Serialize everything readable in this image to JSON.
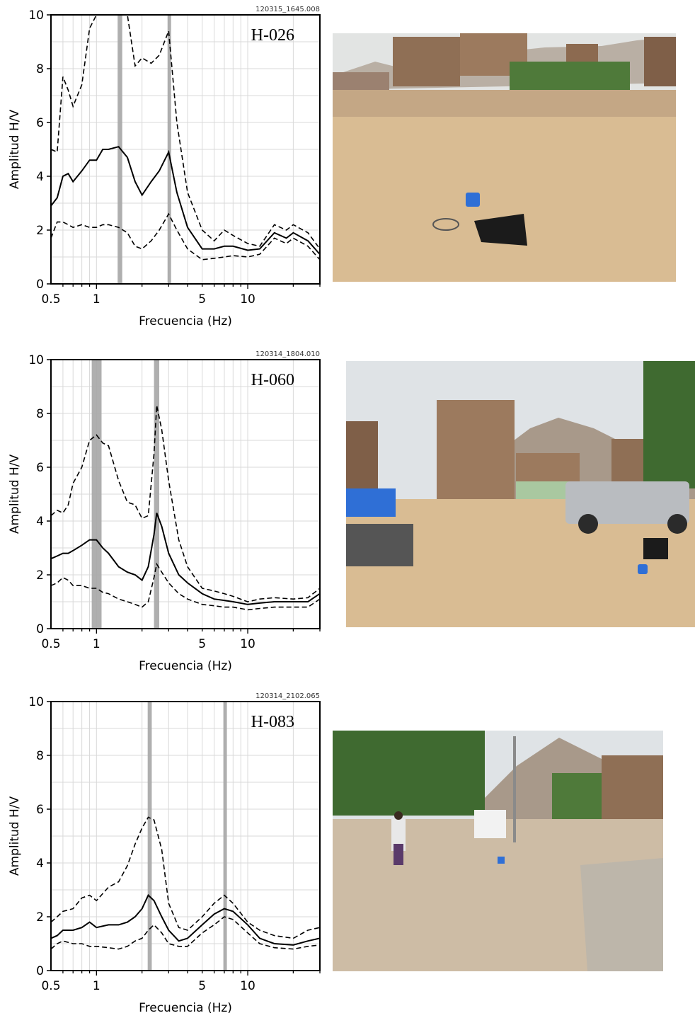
{
  "chart_data": [
    {
      "type": "line",
      "station": "H-026",
      "record_id": "120315_1645.008",
      "xlabel": "Frecuencia (Hz)",
      "ylabel": "Amplitud H/V",
      "xscale": "log",
      "xlim": [
        0.5,
        30
      ],
      "ylim": [
        0,
        10
      ],
      "xticks": [
        "0.5",
        "1",
        "5",
        "10"
      ],
      "yticks": [
        "0",
        "2",
        "4",
        "6",
        "8",
        "10"
      ],
      "peak_bands": [
        [
          1.38,
          1.48
        ],
        [
          2.95,
          3.05
        ]
      ],
      "x": [
        0.5,
        0.55,
        0.6,
        0.65,
        0.7,
        0.8,
        0.9,
        1.0,
        1.1,
        1.2,
        1.4,
        1.6,
        1.8,
        2.0,
        2.3,
        2.6,
        3.0,
        3.4,
        4.0,
        5.0,
        6.0,
        7.0,
        8.0,
        10,
        12,
        15,
        18,
        20,
        25,
        30
      ],
      "series": [
        {
          "name": "",
          "style": "dashed",
          "values": [
            5.0,
            4.9,
            7.7,
            7.2,
            6.6,
            7.4,
            9.5,
            10,
            10,
            10,
            10,
            10,
            8.1,
            8.4,
            8.2,
            8.5,
            9.4,
            6.0,
            3.4,
            2.0,
            1.6,
            2.0,
            1.8,
            1.5,
            1.4,
            2.2,
            2.0,
            2.2,
            1.9,
            1.3
          ]
        },
        {
          "name": "",
          "style": "solid",
          "values": [
            2.9,
            3.2,
            4.0,
            4.1,
            3.8,
            4.2,
            4.6,
            4.6,
            5.0,
            5.0,
            5.1,
            4.7,
            3.8,
            3.3,
            3.8,
            4.2,
            4.9,
            3.4,
            2.1,
            1.3,
            1.3,
            1.4,
            1.4,
            1.25,
            1.3,
            1.9,
            1.7,
            1.9,
            1.6,
            1.1
          ]
        },
        {
          "name": "",
          "style": "dashed",
          "values": [
            1.7,
            2.3,
            2.3,
            2.2,
            2.1,
            2.2,
            2.1,
            2.1,
            2.2,
            2.2,
            2.1,
            1.9,
            1.4,
            1.3,
            1.6,
            2.0,
            2.6,
            2.0,
            1.3,
            0.9,
            0.95,
            1.0,
            1.05,
            1.0,
            1.1,
            1.7,
            1.5,
            1.7,
            1.4,
            0.9
          ]
        }
      ]
    },
    {
      "type": "line",
      "station": "H-060",
      "record_id": "120314_1804.010",
      "xlabel": "Frecuencia (Hz)",
      "ylabel": "Amplitud H/V",
      "xscale": "log",
      "xlim": [
        0.5,
        30
      ],
      "ylim": [
        0,
        10
      ],
      "xticks": [
        "0.5",
        "1",
        "5",
        "10"
      ],
      "yticks": [
        "0",
        "2",
        "4",
        "6",
        "8",
        "10"
      ],
      "peak_bands": [
        [
          0.93,
          1.08
        ],
        [
          2.4,
          2.6
        ]
      ],
      "x": [
        0.5,
        0.55,
        0.6,
        0.65,
        0.7,
        0.8,
        0.9,
        1.0,
        1.1,
        1.2,
        1.4,
        1.6,
        1.8,
        2.0,
        2.2,
        2.4,
        2.5,
        2.7,
        3.0,
        3.5,
        4.0,
        5.0,
        6.0,
        7.0,
        8.0,
        10,
        12,
        15,
        20,
        25,
        30
      ],
      "series": [
        {
          "name": "",
          "style": "dashed",
          "values": [
            4.2,
            4.4,
            4.3,
            4.6,
            5.4,
            6.0,
            7.0,
            7.2,
            6.9,
            6.8,
            5.5,
            4.7,
            4.6,
            4.1,
            4.2,
            6.5,
            8.3,
            7.4,
            5.5,
            3.3,
            2.3,
            1.5,
            1.4,
            1.3,
            1.2,
            1.0,
            1.1,
            1.15,
            1.1,
            1.15,
            1.5
          ]
        },
        {
          "name": "",
          "style": "solid",
          "values": [
            2.6,
            2.7,
            2.8,
            2.8,
            2.9,
            3.1,
            3.3,
            3.3,
            3.0,
            2.8,
            2.3,
            2.1,
            2.0,
            1.8,
            2.3,
            3.5,
            4.3,
            3.8,
            2.8,
            2.0,
            1.7,
            1.3,
            1.1,
            1.05,
            1.0,
            0.9,
            0.95,
            1.0,
            1.0,
            1.0,
            1.3
          ]
        },
        {
          "name": "",
          "style": "dashed",
          "values": [
            1.6,
            1.7,
            1.9,
            1.8,
            1.6,
            1.6,
            1.5,
            1.5,
            1.35,
            1.3,
            1.1,
            1.0,
            0.9,
            0.8,
            1.0,
            1.9,
            2.4,
            2.1,
            1.7,
            1.3,
            1.1,
            0.9,
            0.85,
            0.8,
            0.8,
            0.7,
            0.75,
            0.8,
            0.8,
            0.8,
            1.1
          ]
        }
      ]
    },
    {
      "type": "line",
      "station": "H-083",
      "record_id": "120314_2102.065",
      "xlabel": "Frecuencia (Hz)",
      "ylabel": "Amplitud H/V",
      "xscale": "log",
      "xlim": [
        0.5,
        30
      ],
      "ylim": [
        0,
        10
      ],
      "xticks": [
        "0.5",
        "1",
        "5",
        "10"
      ],
      "yticks": [
        "0",
        "2",
        "4",
        "6",
        "8",
        "10"
      ],
      "peak_bands": [
        [
          2.18,
          2.32
        ],
        [
          6.9,
          7.1
        ]
      ],
      "x": [
        0.5,
        0.55,
        0.6,
        0.7,
        0.8,
        0.9,
        1.0,
        1.2,
        1.4,
        1.6,
        1.8,
        2.0,
        2.2,
        2.4,
        2.7,
        3.0,
        3.5,
        4.0,
        5.0,
        6.0,
        7.0,
        8.0,
        10,
        12,
        15,
        20,
        25,
        30
      ],
      "series": [
        {
          "name": "",
          "style": "dashed",
          "values": [
            1.8,
            2.0,
            2.2,
            2.3,
            2.7,
            2.8,
            2.6,
            3.1,
            3.3,
            3.9,
            4.7,
            5.3,
            5.7,
            5.6,
            4.5,
            2.5,
            1.6,
            1.5,
            2.0,
            2.5,
            2.8,
            2.5,
            1.8,
            1.5,
            1.3,
            1.2,
            1.5,
            1.6
          ]
        },
        {
          "name": "",
          "style": "solid",
          "values": [
            1.2,
            1.3,
            1.5,
            1.5,
            1.6,
            1.8,
            1.6,
            1.7,
            1.7,
            1.8,
            2.0,
            2.3,
            2.8,
            2.6,
            2.0,
            1.5,
            1.1,
            1.2,
            1.7,
            2.1,
            2.3,
            2.2,
            1.7,
            1.2,
            1.0,
            0.95,
            1.1,
            1.2
          ]
        },
        {
          "name": "",
          "style": "dashed",
          "values": [
            0.8,
            1.0,
            1.1,
            1.0,
            1.0,
            0.9,
            0.9,
            0.85,
            0.8,
            0.9,
            1.1,
            1.2,
            1.5,
            1.7,
            1.4,
            1.0,
            0.9,
            0.9,
            1.4,
            1.7,
            2.0,
            1.9,
            1.4,
            1.0,
            0.85,
            0.8,
            0.9,
            0.95
          ]
        }
      ]
    }
  ],
  "photos": [
    {
      "subject": "dirt-road-with-seismic-sensor-and-equipment-case"
    },
    {
      "subject": "street-with-pickup-truck-mototaxi-and-sensor"
    },
    {
      "subject": "dirt-road-with-woman-truck-and-mountains"
    }
  ],
  "colors": {
    "axes": "#000000",
    "grid": "#d9d9d9",
    "peak_band": "#a6a6a6",
    "sky": "#dfe3e6",
    "ground": "#d9bc93",
    "mountain": "#a8998a",
    "brick": "#9c7a5e",
    "vegetation": "#4f7a3a"
  }
}
